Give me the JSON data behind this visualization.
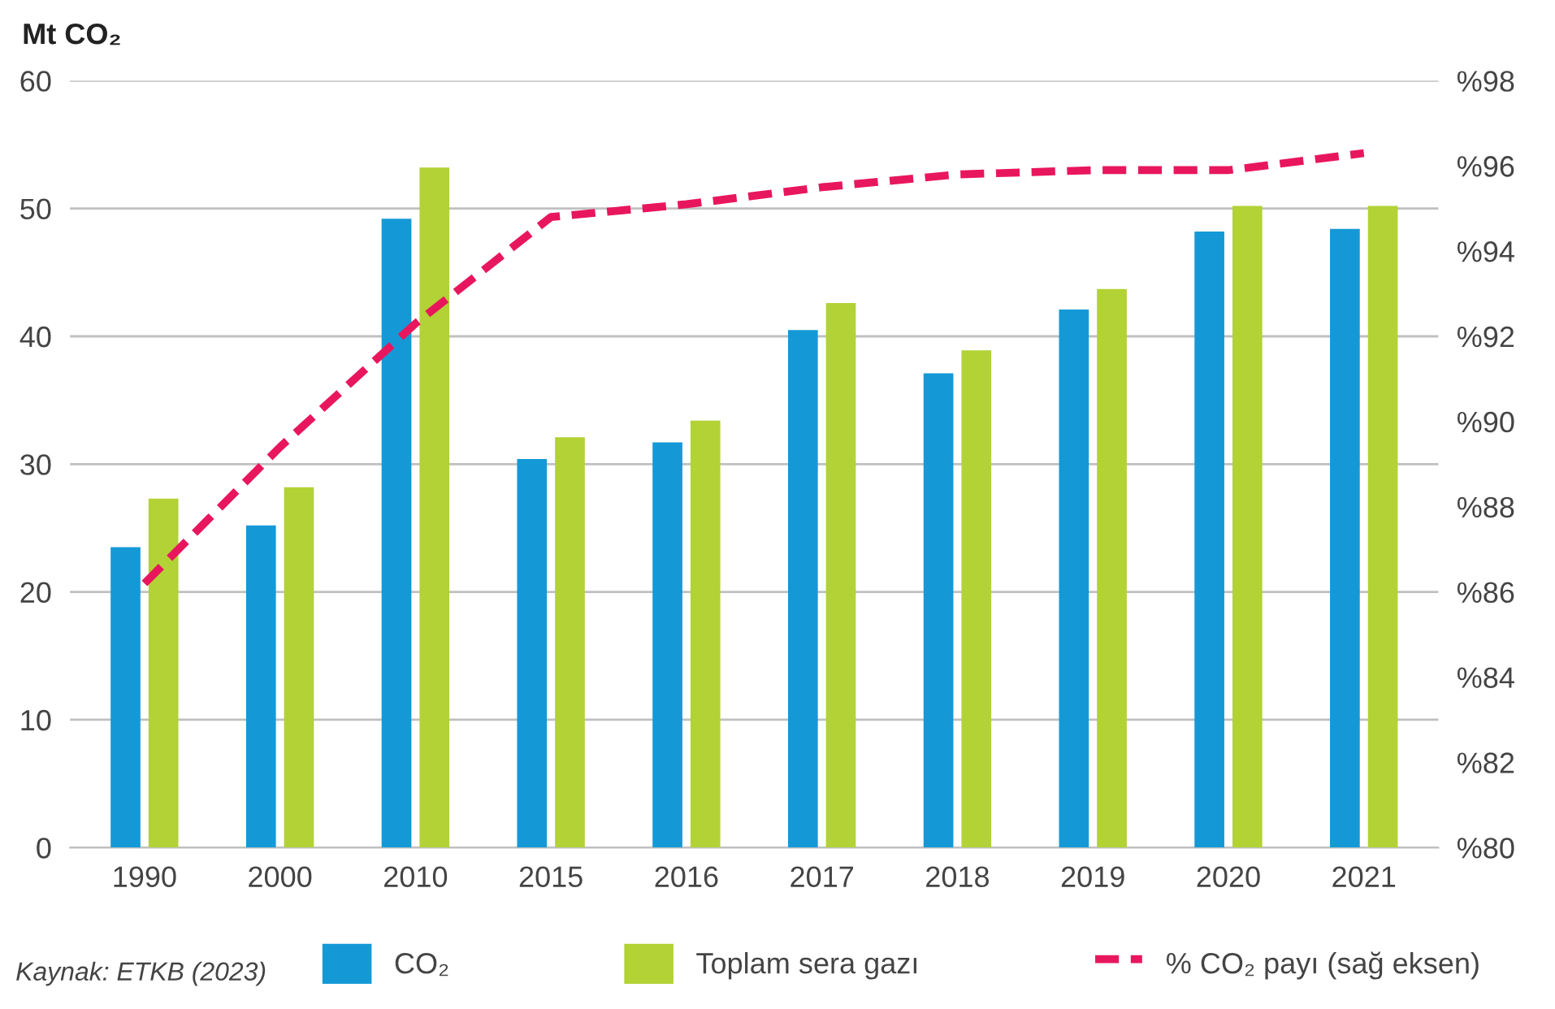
{
  "chart_data": {
    "type": "bar",
    "ylabel": "Mt CO₂",
    "categories": [
      "1990",
      "2000",
      "2010",
      "2015",
      "2016",
      "2017",
      "2018",
      "2019",
      "2020",
      "2021"
    ],
    "series": [
      {
        "name": "CO₂",
        "color": "#1599d6",
        "values": [
          23.5,
          25.2,
          49.2,
          30.4,
          31.7,
          40.5,
          37.1,
          42.1,
          48.2,
          48.4
        ]
      },
      {
        "name": "Toplam sera gazı",
        "color": "#b2d235",
        "values": [
          27.3,
          28.2,
          53.2,
          32.1,
          33.4,
          42.6,
          38.9,
          43.7,
          50.2,
          50.2
        ]
      },
      {
        "name": "% CO₂ payı (sağ eksen)",
        "type": "line",
        "axis": "y2",
        "color": "#e8175d",
        "line_style": "dashed",
        "values": [
          86.2,
          89.4,
          92.3,
          94.8,
          95.1,
          95.5,
          95.8,
          95.9,
          95.9,
          96.3
        ]
      }
    ],
    "ylim": [
      0,
      60
    ],
    "yticks": [
      0,
      10,
      20,
      30,
      40,
      50,
      60
    ],
    "y2lim": [
      80,
      98
    ],
    "y2ticks": [
      {
        "value": 80,
        "label": "%80"
      },
      {
        "value": 82,
        "label": "%82"
      },
      {
        "value": 84,
        "label": "%84"
      },
      {
        "value": 86,
        "label": "%86"
      },
      {
        "value": 88,
        "label": "%88"
      },
      {
        "value": 90,
        "label": "%90"
      },
      {
        "value": 92,
        "label": "%92"
      },
      {
        "value": 94,
        "label": "%94"
      },
      {
        "value": 96,
        "label": "%96"
      },
      {
        "value": 98,
        "label": "%98"
      }
    ],
    "grid": "y",
    "legend": "bottom",
    "marker": "none",
    "annotations": [
      "Kaynak: ETKB (2023)"
    ]
  }
}
